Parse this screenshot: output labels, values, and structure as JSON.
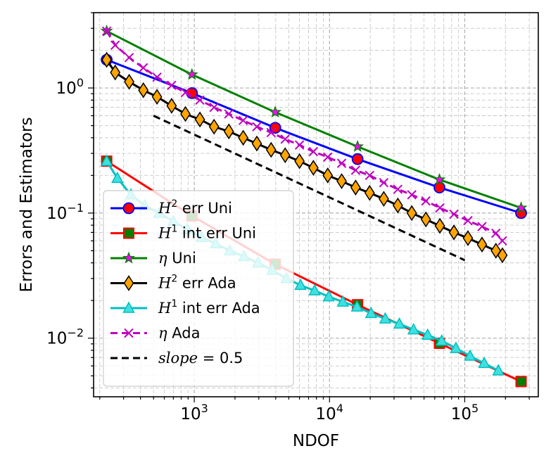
{
  "chart_data": {
    "type": "line",
    "scale": {
      "x": "log",
      "y": "log"
    },
    "xlabel": "NDOF",
    "ylabel": "Errors and Estimators",
    "xlim": [
      180,
      350000
    ],
    "ylim": [
      0.0034,
      4.0
    ],
    "x_ticks": [
      {
        "value": 1000,
        "base": "10",
        "exp": "3"
      },
      {
        "value": 10000,
        "base": "10",
        "exp": "4"
      },
      {
        "value": 100000,
        "base": "10",
        "exp": "5"
      }
    ],
    "y_ticks": [
      {
        "value": 0.01,
        "base": "10",
        "exp": "−2"
      },
      {
        "value": 0.1,
        "base": "10",
        "exp": "−1"
      },
      {
        "value": 1,
        "base": "10",
        "exp": "0"
      }
    ],
    "grid": true,
    "legend_position": "lower-left",
    "series": [
      {
        "name_main": "H",
        "name_sup": "2",
        "name_rest": " err Uni",
        "color": "#0000ff",
        "fill": "#ff0000",
        "marker": "circle",
        "dash": "solid",
        "x": [
          225,
          961,
          3969,
          16129,
          65025,
          261121
        ],
        "y": [
          1.68,
          0.91,
          0.48,
          0.27,
          0.16,
          0.1
        ]
      },
      {
        "name_main": "H",
        "name_sup": "1",
        "name_rest": " int err Uni",
        "color": "#ff0000",
        "fill": "#008000",
        "marker": "square",
        "dash": "solid",
        "x": [
          225,
          961,
          3969,
          16129,
          65025,
          261121
        ],
        "y": [
          0.26,
          0.095,
          0.039,
          0.0185,
          0.0091,
          0.0045
        ]
      },
      {
        "name_main": "η",
        "name_sup": "",
        "name_rest": " Uni",
        "color": "#008000",
        "fill": "#ff00ff",
        "marker": "star",
        "dash": "solid",
        "x": [
          225,
          961,
          3969,
          16129,
          65025,
          261121
        ],
        "y": [
          2.85,
          1.28,
          0.64,
          0.34,
          0.185,
          0.11
        ]
      },
      {
        "name_main": "H",
        "name_sup": "2",
        "name_rest": " err Ada",
        "color": "#000000",
        "fill": "#ffa500",
        "marker": "diamond",
        "dash": "solid",
        "x": [
          225,
          260,
          330,
          420,
          530,
          680,
          860,
          1100,
          1400,
          1800,
          2300,
          2900,
          3700,
          4700,
          6000,
          7600,
          9700,
          12300,
          15600,
          19800,
          25200,
          32000,
          40600,
          51600,
          65500,
          83200,
          105600,
          134200,
          170000,
          190000
        ],
        "y": [
          1.68,
          1.33,
          1.12,
          0.96,
          0.85,
          0.72,
          0.62,
          0.56,
          0.49,
          0.45,
          0.4,
          0.36,
          0.32,
          0.29,
          0.26,
          0.23,
          0.2,
          0.18,
          0.16,
          0.145,
          0.13,
          0.115,
          0.1,
          0.089,
          0.079,
          0.07,
          0.063,
          0.056,
          0.05,
          0.046
        ]
      },
      {
        "name_main": "H",
        "name_sup": "1",
        "name_rest": " int err Ada",
        "color": "#00bfbf",
        "fill": "#40e0e0",
        "marker": "triangle",
        "dash": "solid",
        "x": [
          225,
          270,
          340,
          430,
          550,
          700,
          890,
          1130,
          1440,
          1830,
          2330,
          2960,
          3770,
          4800,
          6100,
          7760,
          9870,
          12550,
          15970,
          20300,
          25830,
          32850,
          41800,
          53170,
          67640,
          86050,
          109460,
          139250,
          177150
        ],
        "y": [
          0.26,
          0.19,
          0.14,
          0.115,
          0.1,
          0.086,
          0.074,
          0.064,
          0.057,
          0.05,
          0.045,
          0.04,
          0.035,
          0.03,
          0.0265,
          0.024,
          0.0215,
          0.0195,
          0.0178,
          0.0158,
          0.0143,
          0.013,
          0.0117,
          0.0106,
          0.0095,
          0.0083,
          0.0072,
          0.0063,
          0.0055
        ]
      },
      {
        "name_main": "η",
        "name_sup": "",
        "name_rest": " Ada",
        "color": "#bf00bf",
        "fill": "#bf00bf",
        "marker": "x",
        "dash": "dashed",
        "x": [
          225,
          260,
          330,
          420,
          530,
          680,
          860,
          1100,
          1400,
          1800,
          2300,
          2900,
          3700,
          4700,
          6000,
          7600,
          9700,
          12300,
          15600,
          19800,
          25200,
          32000,
          40600,
          51600,
          65500,
          83200,
          105600,
          134200,
          170000,
          190000
        ],
        "y": [
          2.85,
          2.2,
          1.75,
          1.45,
          1.22,
          1.05,
          0.92,
          0.8,
          0.7,
          0.62,
          0.55,
          0.49,
          0.44,
          0.39,
          0.35,
          0.31,
          0.28,
          0.25,
          0.22,
          0.2,
          0.175,
          0.155,
          0.14,
          0.125,
          0.11,
          0.098,
          0.087,
          0.078,
          0.069,
          0.06
        ]
      },
      {
        "name_main": "slope",
        "name_sup": "",
        "name_rest": " = 0.5",
        "color": "#000000",
        "fill": "none",
        "marker": "none",
        "dash": "dashed",
        "x": [
          500,
          100000
        ],
        "y": [
          0.6,
          0.042
        ]
      }
    ]
  }
}
